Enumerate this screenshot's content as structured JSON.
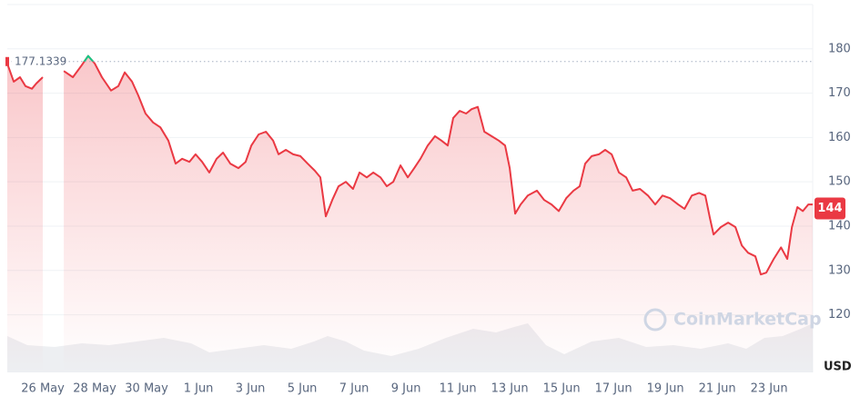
{
  "chart_data": {
    "type": "line",
    "x": [
      24.63,
      24.88,
      25.12,
      25.33,
      25.58,
      25.75,
      26.0,
      26.4,
      26.81,
      27.16,
      27.5,
      27.75,
      28.0,
      28.28,
      28.63,
      28.91,
      29.16,
      29.44,
      29.68,
      29.96,
      30.25,
      30.53,
      30.84,
      31.12,
      31.37,
      31.65,
      31.89,
      32.14,
      32.42,
      32.7,
      32.95,
      33.23,
      33.54,
      33.82,
      34.04,
      34.32,
      34.6,
      34.88,
      35.09,
      35.37,
      35.65,
      35.93,
      36.21,
      36.49,
      36.7,
      36.91,
      37.16,
      37.4,
      37.68,
      37.96,
      38.21,
      38.49,
      38.74,
      39.02,
      39.26,
      39.51,
      39.79,
      40.07,
      40.32,
      40.56,
      40.84,
      41.12,
      41.37,
      41.61,
      41.82,
      42.07,
      42.32,
      42.53,
      42.77,
      43.02,
      43.3,
      43.58,
      43.82,
      44.0,
      44.21,
      44.42,
      44.7,
      45.05,
      45.33,
      45.61,
      45.89,
      46.18,
      46.46,
      46.7,
      46.91,
      47.16,
      47.44,
      47.68,
      47.93,
      48.21,
      48.49,
      48.74,
      49.02,
      49.33,
      49.61,
      49.89,
      50.18,
      50.49,
      50.74,
      51.02,
      51.3,
      51.54,
      51.72,
      51.86,
      52.14,
      52.42,
      52.7,
      52.95,
      53.19,
      53.47,
      53.68,
      53.89,
      54.18,
      54.46,
      54.7,
      54.88,
      55.09,
      55.3,
      55.51,
      55.68
    ],
    "series": [
      {
        "color": "#ea3943",
        "values": [
          176.7,
          172.6,
          173.6,
          171.6,
          171.0,
          172.2,
          173.6,
          null,
          175.0,
          173.6,
          176.3,
          178.4,
          176.7,
          173.6,
          170.6,
          171.6,
          174.7,
          172.6,
          169.5,
          165.4,
          163.4,
          162.3,
          159.3,
          154.1,
          155.2,
          154.5,
          156.2,
          154.5,
          152.1,
          155.2,
          156.6,
          154.1,
          153.1,
          154.5,
          158.2,
          160.7,
          161.3,
          159.3,
          156.2,
          157.2,
          156.2,
          155.8,
          154.1,
          152.5,
          151.0,
          142.2,
          145.9,
          149.0,
          150.0,
          148.4,
          152.1,
          151.0,
          152.1,
          151.0,
          149.0,
          150.0,
          153.7,
          151.0,
          153.1,
          155.2,
          158.2,
          160.3,
          159.3,
          158.2,
          164.4,
          166.0,
          165.4,
          166.4,
          166.9,
          161.3,
          160.3,
          159.3,
          158.2,
          153.1,
          142.8,
          144.9,
          146.9,
          148.0,
          145.9,
          144.9,
          143.4,
          146.3,
          148.0,
          149.0,
          154.1,
          155.8,
          156.2,
          157.2,
          156.2,
          152.1,
          151.0,
          148.0,
          148.4,
          146.9,
          144.9,
          146.9,
          146.3,
          144.9,
          143.9,
          146.9,
          147.5,
          146.9,
          141.8,
          138.1,
          139.8,
          140.8,
          139.8,
          135.6,
          134.0,
          133.2,
          129.1,
          129.5,
          132.6,
          135.2,
          132.6,
          139.8,
          144.3,
          143.4,
          144.9,
          144.9
        ]
      }
    ],
    "up_color": "#16c784",
    "reference_line": 177.1339,
    "current_price": 144,
    "unit": "USD",
    "watermark": "CoinMarketCap",
    "xlim": [
      24.63,
      55.68
    ],
    "xticks": [
      {
        "value": 26,
        "label": "26 May"
      },
      {
        "value": 28,
        "label": "28 May"
      },
      {
        "value": 30,
        "label": "30 May"
      },
      {
        "value": 32,
        "label": "1 Jun"
      },
      {
        "value": 34,
        "label": "3 Jun"
      },
      {
        "value": 36,
        "label": "5 Jun"
      },
      {
        "value": 38,
        "label": "7 Jun"
      },
      {
        "value": 40,
        "label": "9 Jun"
      },
      {
        "value": 42,
        "label": "11 Jun"
      },
      {
        "value": 44,
        "label": "13 Jun"
      },
      {
        "value": 46,
        "label": "15 Jun"
      },
      {
        "value": 48,
        "label": "17 Jun"
      },
      {
        "value": 50,
        "label": "19 Jun"
      },
      {
        "value": 52,
        "label": "21 Jun"
      },
      {
        "value": 54,
        "label": "23 Jun"
      }
    ],
    "ylim": [
      107,
      190
    ],
    "yticks": [
      120,
      130,
      140,
      150,
      160,
      170,
      180
    ],
    "grid": true
  }
}
